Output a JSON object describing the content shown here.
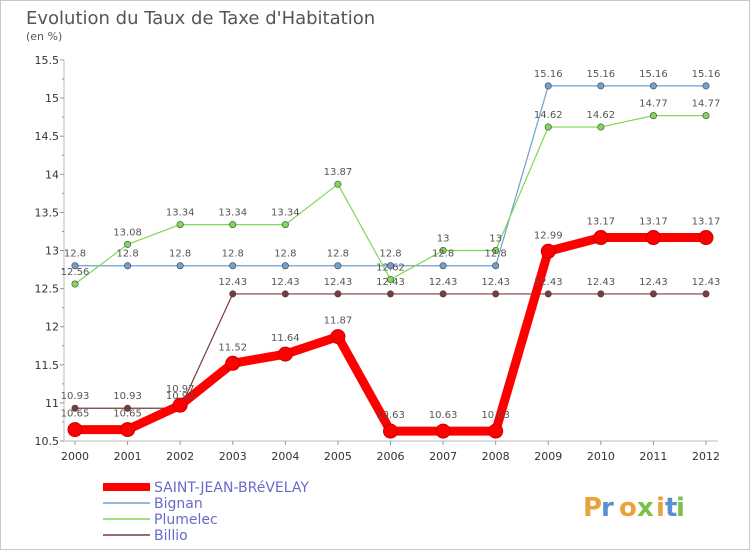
{
  "chart_data": {
    "type": "line",
    "title": "Evolution du Taux de Taxe d'Habitation",
    "subtitle": "(en %)",
    "categories": [
      "2000",
      "2001",
      "2002",
      "2003",
      "2004",
      "2005",
      "2006",
      "2007",
      "2008",
      "2009",
      "2010",
      "2011",
      "2012"
    ],
    "ylim": [
      10.5,
      15.5
    ],
    "yticks": [
      "10.5",
      "11",
      "11.5",
      "12",
      "12.5",
      "13",
      "13.5",
      "14",
      "14.5",
      "15",
      "15.5"
    ],
    "grid": false,
    "legend_position": "bottom-left",
    "series": [
      {
        "name": "SAINT-JEAN-BRéVELAY",
        "color": "#ff0000",
        "values": [
          10.65,
          10.65,
          10.97,
          11.52,
          11.64,
          11.87,
          10.63,
          10.63,
          10.63,
          12.99,
          13.17,
          13.17,
          13.17
        ],
        "labels": [
          "10.65",
          "10.65",
          "10.97",
          "11.52",
          "11.64",
          "11.87",
          "10.63",
          "10.63",
          "10.63",
          "12.99",
          "13.17",
          "13.17",
          "13.17"
        ]
      },
      {
        "name": "Bignan",
        "color": "#6fa0d0",
        "values": [
          12.8,
          12.8,
          12.8,
          12.8,
          12.8,
          12.8,
          12.8,
          12.8,
          12.8,
          15.16,
          15.16,
          15.16,
          15.16
        ],
        "labels": [
          "12.8",
          "12.8",
          "12.8",
          "12.8",
          "12.8",
          "12.8",
          "12.8",
          "12.8",
          "12.8",
          "15.16",
          "15.16",
          "15.16",
          "15.16"
        ]
      },
      {
        "name": "Plumelec",
        "color": "#7ed957",
        "values": [
          12.56,
          13.08,
          13.34,
          13.34,
          13.34,
          13.87,
          12.62,
          13,
          13,
          14.62,
          14.62,
          14.77,
          14.77
        ],
        "labels": [
          "12.56",
          "13.08",
          "13.34",
          "13.34",
          "13.34",
          "13.87",
          "12.62",
          "13",
          "13",
          "14.62",
          "14.62",
          "14.77",
          "14.77"
        ]
      },
      {
        "name": "Billio",
        "color": "#7a3b3b",
        "values": [
          10.93,
          10.93,
          10.93,
          12.43,
          12.43,
          12.43,
          12.43,
          12.43,
          12.43,
          12.43,
          12.43,
          12.43,
          12.43
        ],
        "labels": [
          "10.93",
          "10.93",
          "10.93",
          "12.43",
          "12.43",
          "12.43",
          "12.43",
          "12.43",
          "12.43",
          "12.43",
          "12.43",
          "12.43",
          "12.43"
        ]
      }
    ]
  },
  "logo": {
    "text": "Proxiti"
  }
}
